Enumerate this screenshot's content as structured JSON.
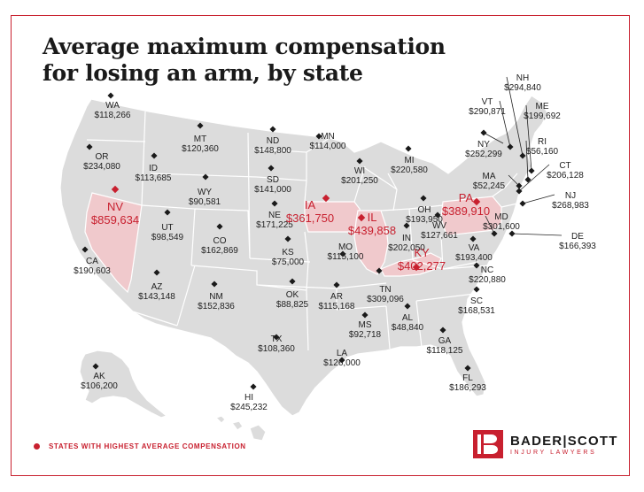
{
  "title_line1": "Average maximum compensation",
  "title_line2": "for losing an arm, by state",
  "legend_label": "STATES WITH HIGHEST AVERAGE COMPENSATION",
  "brand": {
    "name": "BADER|SCOTT",
    "tagline": "INJURY LAWYERS"
  },
  "colors": {
    "accent": "#c8202f",
    "land": "#dcdcdc",
    "border": "#ffffff",
    "highlight_fill": "#f0c9cc"
  },
  "states": [
    {
      "code": "WA",
      "value": "$118,266",
      "highlight": false
    },
    {
      "code": "OR",
      "value": "$234,080",
      "highlight": false
    },
    {
      "code": "CA",
      "value": "$190,603",
      "highlight": false
    },
    {
      "code": "NV",
      "value": "$859,634",
      "highlight": true
    },
    {
      "code": "ID",
      "value": "$113,685",
      "highlight": false
    },
    {
      "code": "MT",
      "value": "$120,360",
      "highlight": false
    },
    {
      "code": "WY",
      "value": "$90,581",
      "highlight": false
    },
    {
      "code": "UT",
      "value": "$98,549",
      "highlight": false
    },
    {
      "code": "AZ",
      "value": "$143,148",
      "highlight": false
    },
    {
      "code": "CO",
      "value": "$162,869",
      "highlight": false
    },
    {
      "code": "NM",
      "value": "$152,836",
      "highlight": false
    },
    {
      "code": "ND",
      "value": "$148,800",
      "highlight": false
    },
    {
      "code": "SD",
      "value": "$141,000",
      "highlight": false
    },
    {
      "code": "NE",
      "value": "$171,225",
      "highlight": false
    },
    {
      "code": "KS",
      "value": "$75,000",
      "highlight": false
    },
    {
      "code": "OK",
      "value": "$88,825",
      "highlight": false
    },
    {
      "code": "TX",
      "value": "$108,360",
      "highlight": false
    },
    {
      "code": "MN",
      "value": "$114,000",
      "highlight": false
    },
    {
      "code": "IA",
      "value": "$361,750",
      "highlight": true
    },
    {
      "code": "MO",
      "value": "$115,100",
      "highlight": false
    },
    {
      "code": "AR",
      "value": "$115,168",
      "highlight": false
    },
    {
      "code": "LA",
      "value": "$126,000",
      "highlight": false
    },
    {
      "code": "WI",
      "value": "$201,250",
      "highlight": false
    },
    {
      "code": "IL",
      "value": "$439,858",
      "highlight": true
    },
    {
      "code": "MI",
      "value": "$220,580",
      "highlight": false
    },
    {
      "code": "IN",
      "value": "$202,050",
      "highlight": false
    },
    {
      "code": "OH",
      "value": "$193,950",
      "highlight": false
    },
    {
      "code": "KY",
      "value": "$402,277",
      "highlight": true
    },
    {
      "code": "TN",
      "value": "$309,096",
      "highlight": false
    },
    {
      "code": "MS",
      "value": "$92,718",
      "highlight": false
    },
    {
      "code": "AL",
      "value": "$48,840",
      "highlight": false
    },
    {
      "code": "GA",
      "value": "$118,125",
      "highlight": false
    },
    {
      "code": "FL",
      "value": "$186,293",
      "highlight": false
    },
    {
      "code": "SC",
      "value": "$168,531",
      "highlight": false
    },
    {
      "code": "NC",
      "value": "$220,880",
      "highlight": false
    },
    {
      "code": "VA",
      "value": "$193,400",
      "highlight": false
    },
    {
      "code": "WV",
      "value": "$127,661",
      "highlight": false
    },
    {
      "code": "PA",
      "value": "$389,910",
      "highlight": true
    },
    {
      "code": "NY",
      "value": "$252,299",
      "highlight": false
    },
    {
      "code": "VT",
      "value": "$290,871",
      "highlight": false
    },
    {
      "code": "NH",
      "value": "$294,840",
      "highlight": false
    },
    {
      "code": "ME",
      "value": "$199,692",
      "highlight": false
    },
    {
      "code": "MA",
      "value": "$52,245",
      "highlight": false
    },
    {
      "code": "RI",
      "value": "$56,160",
      "highlight": false
    },
    {
      "code": "CT",
      "value": "$206,128",
      "highlight": false
    },
    {
      "code": "NJ",
      "value": "$268,983",
      "highlight": false
    },
    {
      "code": "DE",
      "value": "$166,393",
      "highlight": false
    },
    {
      "code": "MD",
      "value": "$301,600",
      "highlight": false
    },
    {
      "code": "AK",
      "value": "$106,200",
      "highlight": false
    },
    {
      "code": "HI",
      "value": "$245,232",
      "highlight": false
    }
  ]
}
